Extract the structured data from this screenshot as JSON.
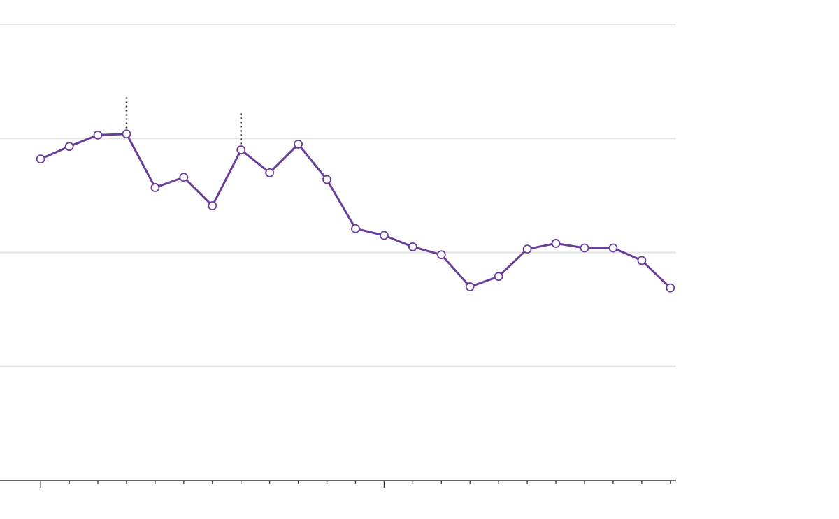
{
  "chart_data": {
    "type": "line",
    "x": [
      0,
      1,
      2,
      3,
      4,
      5,
      6,
      7,
      8,
      9,
      10,
      11,
      12,
      13,
      14,
      15,
      16,
      17,
      18,
      19,
      20,
      21,
      22
    ],
    "series": [
      {
        "color": "#6a3d9a",
        "values": [
          2.82,
          2.93,
          3.03,
          3.04,
          2.57,
          2.66,
          2.41,
          2.9,
          2.7,
          2.95,
          2.64,
          2.21,
          2.15,
          2.05,
          1.98,
          1.7,
          1.79,
          2.03,
          2.08,
          2.04,
          2.04,
          1.93,
          1.69
        ]
      }
    ],
    "xlim": [
      -1.42,
      22.2
    ],
    "xticks": [
      0,
      1,
      2,
      3,
      4,
      5,
      6,
      7,
      8,
      9,
      10,
      11,
      12,
      13,
      14,
      15,
      16,
      17,
      18,
      19,
      20,
      21,
      22
    ],
    "major_xticks": [
      0,
      12
    ],
    "ylim": [
      0,
      4
    ],
    "yticks": [
      1,
      2,
      3,
      4
    ],
    "grid": true,
    "markers": [
      {
        "x": 3,
        "top": 3.36
      },
      {
        "x": 7,
        "top": 3.22
      }
    ]
  }
}
